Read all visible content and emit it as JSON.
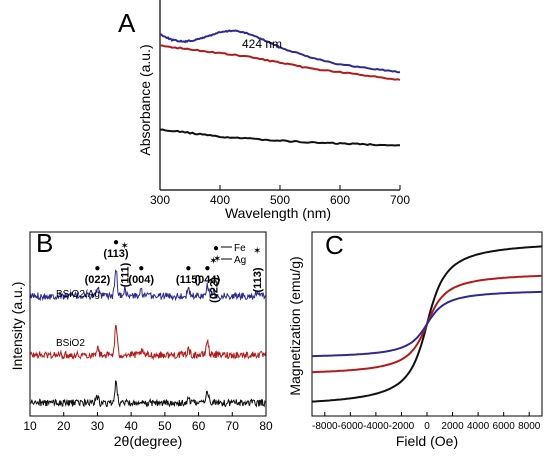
{
  "chart_data": [
    {
      "panel": "A",
      "type": "line",
      "xlabel": "Wavelength (nm)",
      "ylabel": "Absorbance (a.u.)",
      "xlim": [
        300,
        700
      ],
      "xticks": [
        "300",
        "400",
        "500",
        "600",
        "700"
      ],
      "annotations": [
        {
          "text": "424 nm",
          "x": 424
        }
      ],
      "series": [
        {
          "color": "#2e2a8f",
          "x": [
            300,
            320,
            340,
            360,
            380,
            400,
            424,
            450,
            480,
            500,
            550,
            600,
            650,
            700
          ],
          "y": [
            0.82,
            0.79,
            0.78,
            0.79,
            0.81,
            0.83,
            0.84,
            0.82,
            0.78,
            0.75,
            0.7,
            0.66,
            0.64,
            0.62
          ]
        },
        {
          "color": "#b31b1b",
          "x": [
            300,
            350,
            400,
            450,
            500,
            550,
            600,
            650,
            700
          ],
          "y": [
            0.76,
            0.74,
            0.72,
            0.7,
            0.67,
            0.64,
            0.62,
            0.6,
            0.58
          ]
        },
        {
          "color": "#111111",
          "x": [
            300,
            350,
            400,
            450,
            500,
            550,
            600,
            650,
            700
          ],
          "y": [
            0.32,
            0.3,
            0.28,
            0.27,
            0.26,
            0.25,
            0.245,
            0.24,
            0.235
          ]
        }
      ]
    },
    {
      "panel": "B",
      "type": "line",
      "xlabel": "2θ(degree)",
      "ylabel": "Intensity (a.u.)",
      "xlim": [
        10,
        80
      ],
      "xticks": [
        "10",
        "20",
        "30",
        "40",
        "50",
        "60",
        "70",
        "80"
      ],
      "legend": [
        {
          "symbol": "●",
          "label": "Fe"
        },
        {
          "symbol": "✶",
          "label": "Ag"
        }
      ],
      "series_labels": [
        "BSiO2/Ag",
        "BSiO2"
      ],
      "peaks": [
        {
          "label": "(022)",
          "marker": "●",
          "x": 30
        },
        {
          "label": "(113)",
          "marker": "●",
          "x": 35.5
        },
        {
          "label": "(111)",
          "marker": "✶",
          "x": 38.1
        },
        {
          "label": "(004)",
          "marker": "●",
          "x": 43
        },
        {
          "label": "(115)",
          "marker": "●",
          "x": 57
        },
        {
          "label": "(044)",
          "marker": "●",
          "x": 62.6
        },
        {
          "label": "(022)",
          "marker": "✶",
          "x": 64.4
        },
        {
          "label": "(113)",
          "marker": "✶",
          "x": 77.4
        }
      ],
      "series": [
        {
          "color": "#2e2a8f",
          "offset": 2.0,
          "peak_heights": [
            0.15,
            0.45,
            0.12,
            0.08,
            0.1,
            0.2,
            0.08,
            0.05
          ]
        },
        {
          "color": "#b31b1b",
          "offset": 1.0,
          "peak_heights": [
            0.12,
            0.5,
            0.02,
            0.06,
            0.1,
            0.25,
            0.02,
            0.01
          ]
        },
        {
          "color": "#111111",
          "offset": 0.0,
          "peak_heights": [
            0.1,
            0.35,
            0.0,
            0.05,
            0.08,
            0.2,
            0.0,
            0.0
          ]
        }
      ]
    },
    {
      "panel": "C",
      "type": "line",
      "xlabel": "Field (Oe)",
      "ylabel": "Magnetization (emu/g)",
      "xlim": [
        -9000,
        9000
      ],
      "xticks": [
        "-8000",
        "-6000",
        "-4000",
        "-2000",
        "0",
        "2000",
        "4000",
        "6000",
        "8000"
      ],
      "series": [
        {
          "color": "#111111",
          "Ms": 58
        },
        {
          "color": "#b31b1b",
          "Ms": 36
        },
        {
          "color": "#2e2a8f",
          "Ms": 24
        }
      ]
    }
  ],
  "labels": {
    "panelA": "A",
    "panelB": "B",
    "panelC": "C",
    "xlabelA": "Wavelength (nm)",
    "ylabelA": "Absorbance (a.u.)",
    "annA": "424 nm",
    "xlabelB": "2θ(degree)",
    "ylabelB": "Intensity (a.u.)",
    "xlabelC": "Field (Oe)",
    "ylabelC": "Magnetization (emu/g)",
    "legendFe": "Fe",
    "legendAg": "Ag",
    "seriesB1": "BSiO2/Ag",
    "seriesB2": "BSiO2"
  }
}
